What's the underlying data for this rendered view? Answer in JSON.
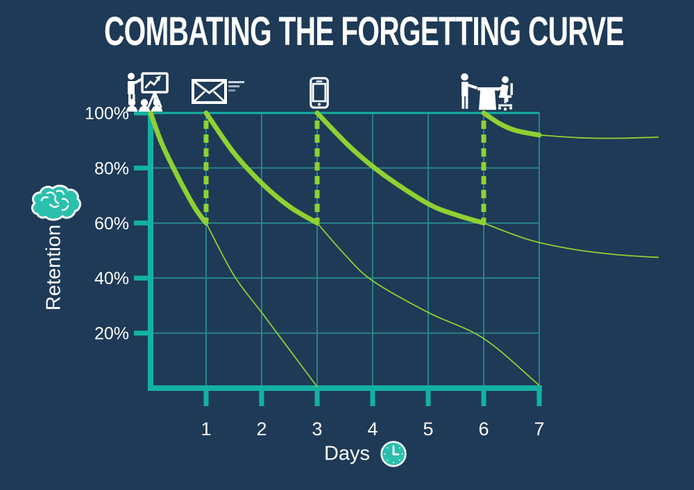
{
  "title": "COMBATING THE FORGETTING CURVE",
  "colors": {
    "background": "#1e3a57",
    "axis_teal": "#14b1a2",
    "grid_teal": "#2a8a8f",
    "curve_green": "#8fd132",
    "accent_teal": "#2bbfad",
    "text": "#ffffff",
    "speed_line_1": "#cdd5dc",
    "speed_line_2": "#a8b6c2",
    "speed_line_3": "#8496a6"
  },
  "icons": [
    {
      "name": "presentation-training-icon",
      "meaning": "initial classroom training",
      "at_day": 0
    },
    {
      "name": "email-icon",
      "meaning": "email reinforcement",
      "at_day": 1
    },
    {
      "name": "smartphone-icon",
      "meaning": "mobile reinforcement",
      "at_day": 3
    },
    {
      "name": "meeting-icon",
      "meaning": "in-person follow-up",
      "at_day": 6
    },
    {
      "name": "brain-icon",
      "meaning": "memory / retention"
    },
    {
      "name": "clock-icon",
      "meaning": "time in days"
    }
  ],
  "chart_data": {
    "type": "line",
    "title": "COMBATING THE FORGETTING CURVE",
    "xlabel": "Days",
    "ylabel": "Retention",
    "xlim": [
      0,
      9.2
    ],
    "ylim": [
      0,
      100
    ],
    "grid": true,
    "legend": "none",
    "x_ticks": {
      "values": [
        1,
        2,
        3,
        4,
        5,
        6,
        7
      ],
      "labels": [
        "1",
        "2",
        "3",
        "4",
        "5",
        "6",
        "7"
      ]
    },
    "y_ticks": {
      "values": [
        100,
        80,
        60,
        40,
        20
      ],
      "labels": [
        "100%",
        "80%",
        "60%",
        "40%",
        "20%"
      ]
    },
    "review_boosts": {
      "days": [
        1,
        3,
        6
      ],
      "from_pct": 60,
      "to_pct": 100,
      "style": "dashed"
    },
    "review_events": [
      {
        "day": 0,
        "icon": "presentation-training-icon"
      },
      {
        "day": 1,
        "icon": "email-icon"
      },
      {
        "day": 3,
        "icon": "smartphone-icon"
      },
      {
        "day": 6,
        "icon": "meeting-icon"
      }
    ],
    "series": [
      {
        "name": "initial-learning-decay",
        "width": "thick",
        "points": [
          [
            0,
            100
          ],
          [
            0.2,
            89
          ],
          [
            0.5,
            76.5
          ],
          [
            0.8,
            65.5
          ],
          [
            1,
            60
          ]
        ]
      },
      {
        "name": "decay-after-review-1",
        "width": "thick",
        "points": [
          [
            1,
            100
          ],
          [
            1.5,
            85.5
          ],
          [
            2,
            74.5
          ],
          [
            2.5,
            66
          ],
          [
            3,
            60
          ]
        ]
      },
      {
        "name": "decay-after-review-2",
        "width": "thick",
        "points": [
          [
            3,
            100
          ],
          [
            3.6,
            87.5
          ],
          [
            4.2,
            77.5
          ],
          [
            5,
            67
          ],
          [
            5.5,
            63
          ],
          [
            6,
            60
          ]
        ]
      },
      {
        "name": "decay-after-review-3",
        "width": "thick",
        "points": [
          [
            6,
            100
          ],
          [
            6.3,
            96
          ],
          [
            6.6,
            93.5
          ],
          [
            7,
            92
          ]
        ]
      },
      {
        "name": "decay-after-review-3-projection",
        "width": "thin",
        "points": [
          [
            7,
            92
          ],
          [
            7.7,
            91
          ],
          [
            8.4,
            90.8
          ],
          [
            9.15,
            91.2
          ]
        ]
      },
      {
        "name": "no-review-after-day-1",
        "width": "thin",
        "points": [
          [
            1,
            60
          ],
          [
            1.5,
            41
          ],
          [
            2,
            27.5
          ],
          [
            2.5,
            14
          ],
          [
            3,
            0.5
          ]
        ]
      },
      {
        "name": "no-review-after-day-3",
        "width": "thin",
        "points": [
          [
            3,
            60
          ],
          [
            3.5,
            48.5
          ],
          [
            4,
            39
          ],
          [
            5,
            27.5
          ],
          [
            6,
            18
          ],
          [
            7,
            1
          ]
        ]
      },
      {
        "name": "no-review-after-day-6",
        "width": "thin",
        "points": [
          [
            6,
            60
          ],
          [
            6.8,
            54
          ],
          [
            7.6,
            50.5
          ],
          [
            8.4,
            48.5
          ],
          [
            9.15,
            47.5
          ]
        ]
      }
    ]
  }
}
